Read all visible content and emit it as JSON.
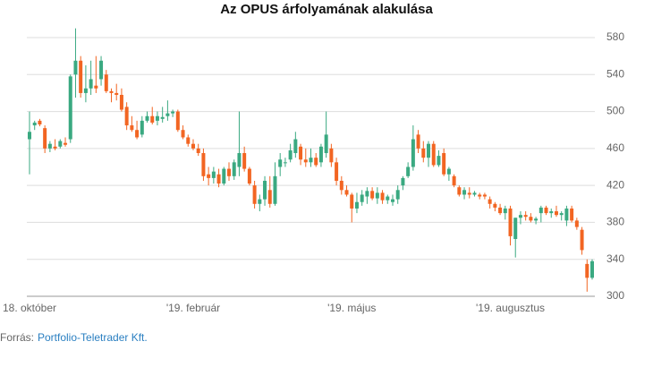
{
  "chart_data": {
    "type": "candlestick",
    "title": "Az OPUS árfolyamának alakulása",
    "categories": [
      "18. október",
      null,
      null,
      null,
      null,
      null,
      null,
      null,
      null,
      null,
      null,
      null,
      null,
      null,
      null,
      null,
      null,
      null,
      null,
      null,
      null,
      null,
      null,
      null,
      null,
      null,
      null,
      null,
      null,
      null,
      null,
      null,
      "'19. február",
      null,
      null,
      null,
      null,
      null,
      null,
      null,
      null,
      null,
      null,
      null,
      null,
      null,
      null,
      null,
      null,
      null,
      null,
      null,
      null,
      null,
      null,
      null,
      null,
      null,
      null,
      null,
      null,
      null,
      null,
      "'19. május",
      null,
      null,
      null,
      null,
      null,
      null,
      null,
      null,
      null,
      null,
      null,
      null,
      null,
      null,
      null,
      null,
      null,
      null,
      null,
      null,
      null,
      null,
      null,
      null,
      null,
      null,
      null,
      null,
      null,
      null,
      "'19. augusztus",
      null,
      null,
      null,
      null,
      null,
      null,
      null,
      null,
      null,
      null,
      null,
      null,
      null,
      null,
      null,
      null
    ],
    "open": [
      470,
      485,
      490,
      482,
      460,
      462,
      462,
      466,
      470,
      540,
      555,
      520,
      525,
      528,
      535,
      540,
      522,
      520,
      518,
      505,
      485,
      480,
      475,
      490,
      495,
      490,
      492,
      495,
      498,
      500,
      480,
      472,
      465,
      460,
      455,
      432,
      428,
      432,
      422,
      438,
      430,
      440,
      455,
      438,
      420,
      400,
      405,
      415,
      400,
      440,
      445,
      448,
      455,
      462,
      448,
      445,
      450,
      445,
      455,
      460,
      445,
      425,
      415,
      410,
      395,
      402,
      408,
      414,
      406,
      412,
      404,
      402,
      405,
      420,
      430,
      440,
      475,
      460,
      450,
      465,
      442,
      455,
      432,
      430,
      418,
      410,
      412,
      410,
      410,
      410,
      405,
      400,
      396,
      390,
      395,
      362,
      385,
      388,
      386,
      382,
      390,
      396,
      390,
      392,
      388,
      382,
      395,
      382,
      372,
      335,
      320
    ],
    "high": [
      500,
      490,
      492,
      485,
      468,
      470,
      470,
      472,
      540,
      590,
      560,
      550,
      555,
      560,
      560,
      545,
      525,
      530,
      525,
      510,
      495,
      490,
      495,
      500,
      505,
      500,
      505,
      512,
      502,
      502,
      485,
      475,
      470,
      465,
      460,
      440,
      440,
      438,
      440,
      445,
      448,
      500,
      462,
      440,
      425,
      410,
      430,
      430,
      445,
      455,
      450,
      465,
      478,
      465,
      460,
      460,
      455,
      465,
      500,
      465,
      450,
      430,
      420,
      412,
      412,
      415,
      418,
      418,
      418,
      415,
      410,
      410,
      420,
      430,
      445,
      485,
      480,
      468,
      468,
      468,
      458,
      460,
      440,
      432,
      420,
      418,
      418,
      414,
      412,
      412,
      408,
      402,
      400,
      398,
      398,
      385,
      392,
      392,
      390,
      386,
      398,
      398,
      395,
      398,
      392,
      398,
      398,
      385,
      375,
      340,
      340
    ],
    "low": [
      432,
      480,
      484,
      455,
      456,
      458,
      460,
      462,
      466,
      515,
      515,
      510,
      518,
      520,
      528,
      520,
      510,
      512,
      500,
      480,
      478,
      470,
      472,
      488,
      486,
      485,
      488,
      490,
      494,
      478,
      470,
      462,
      458,
      452,
      425,
      420,
      422,
      418,
      420,
      425,
      426,
      430,
      435,
      420,
      395,
      392,
      398,
      396,
      398,
      430,
      440,
      445,
      450,
      442,
      440,
      440,
      440,
      440,
      450,
      440,
      420,
      410,
      408,
      380,
      390,
      398,
      400,
      404,
      400,
      400,
      400,
      398,
      400,
      415,
      428,
      436,
      455,
      445,
      440,
      440,
      440,
      430,
      425,
      418,
      408,
      405,
      406,
      408,
      405,
      405,
      395,
      392,
      388,
      383,
      355,
      342,
      378,
      382,
      380,
      378,
      380,
      388,
      385,
      386,
      382,
      376,
      380,
      372,
      345,
      305,
      318
    ],
    "close": [
      478,
      488,
      486,
      460,
      465,
      460,
      468,
      464,
      538,
      555,
      520,
      525,
      535,
      525,
      555,
      522,
      520,
      518,
      502,
      485,
      480,
      472,
      490,
      495,
      488,
      495,
      494,
      498,
      500,
      480,
      472,
      465,
      460,
      455,
      430,
      428,
      435,
      422,
      438,
      430,
      445,
      455,
      438,
      422,
      400,
      405,
      425,
      400,
      430,
      448,
      445,
      458,
      470,
      448,
      445,
      450,
      442,
      462,
      475,
      445,
      425,
      415,
      410,
      395,
      402,
      410,
      414,
      406,
      412,
      404,
      408,
      405,
      415,
      428,
      440,
      470,
      460,
      450,
      465,
      442,
      452,
      432,
      438,
      420,
      410,
      415,
      410,
      412,
      408,
      408,
      400,
      396,
      390,
      395,
      365,
      385,
      388,
      386,
      382,
      384,
      396,
      390,
      392,
      388,
      390,
      395,
      382,
      375,
      350,
      320,
      338
    ],
    "up_color": "#3aa981",
    "down_color": "#f26522",
    "ylim": [
      300,
      580
    ],
    "yticks": [
      300,
      340,
      380,
      420,
      460,
      500,
      540,
      580
    ],
    "grid": true
  },
  "source": {
    "label": "Forrás:",
    "link": "Portfolio-Teletrader Kft."
  }
}
